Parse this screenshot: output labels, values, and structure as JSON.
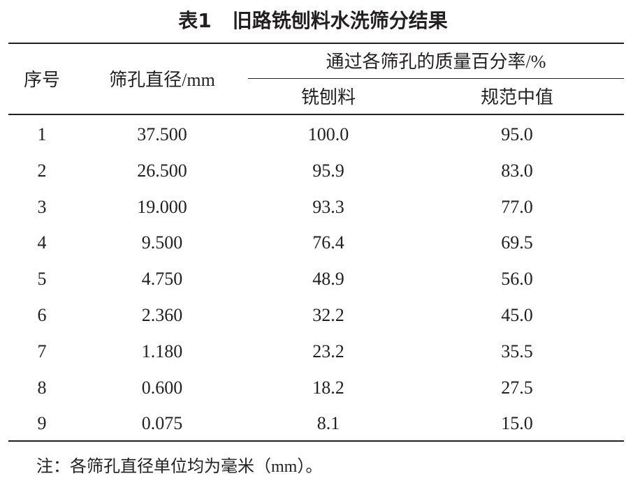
{
  "title": {
    "label": "表1",
    "text": "旧路铣刨料水洗筛分结果"
  },
  "table": {
    "header": {
      "index": "序号",
      "size": "筛孔直径/mm",
      "group": "通过各筛孔的质量百分率/%",
      "milled": "铣刨料",
      "spec": "规范中值"
    },
    "rows": [
      [
        "1",
        "37.500",
        "100.0",
        "95.0"
      ],
      [
        "2",
        "26.500",
        "95.9",
        "83.0"
      ],
      [
        "3",
        "19.000",
        "93.3",
        "77.0"
      ],
      [
        "4",
        "9.500",
        "76.4",
        "69.5"
      ],
      [
        "5",
        "4.750",
        "48.9",
        "56.0"
      ],
      [
        "6",
        "2.360",
        "32.2",
        "45.0"
      ],
      [
        "7",
        "1.180",
        "23.2",
        "35.5"
      ],
      [
        "8",
        "0.600",
        "18.2",
        "27.5"
      ],
      [
        "9",
        "0.075",
        "8.1",
        "15.0"
      ]
    ]
  },
  "note": "注：各筛孔直径单位均为毫米（mm）。"
}
